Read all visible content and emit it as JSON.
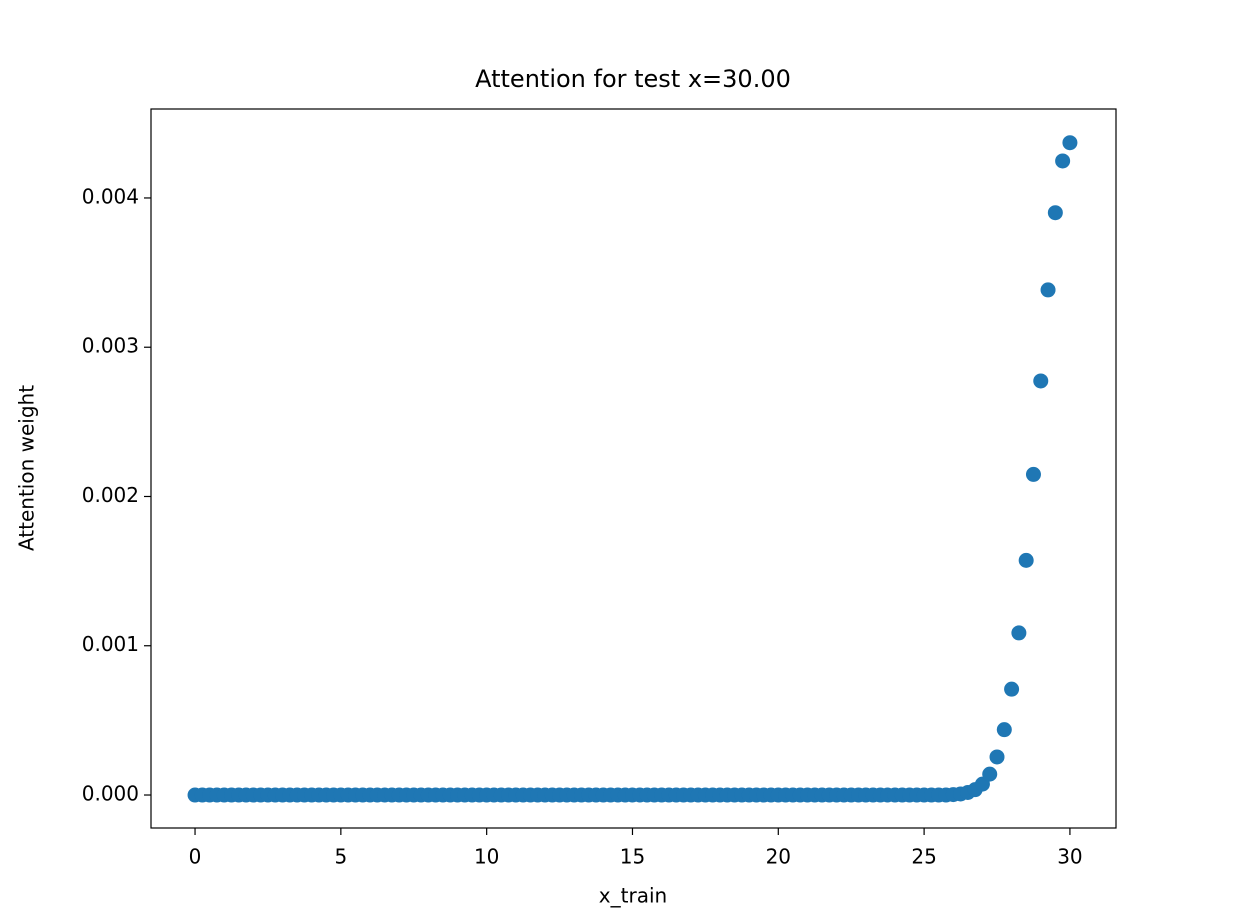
{
  "chart_data": {
    "type": "scatter",
    "title": "Attention for test x=30.00",
    "xlabel": "x_train",
    "ylabel": "Attention weight",
    "color": "#1f77b4",
    "x": [
      0,
      0.25,
      0.5,
      0.75,
      1,
      1.25,
      1.5,
      1.75,
      2,
      2.25,
      2.5,
      2.75,
      3,
      3.25,
      3.5,
      3.75,
      4,
      4.25,
      4.5,
      4.75,
      5,
      5.25,
      5.5,
      5.75,
      6,
      6.25,
      6.5,
      6.75,
      7,
      7.25,
      7.5,
      7.75,
      8,
      8.25,
      8.5,
      8.75,
      9,
      9.25,
      9.5,
      9.75,
      10,
      10.25,
      10.5,
      10.75,
      11,
      11.25,
      11.5,
      11.75,
      12,
      12.25,
      12.5,
      12.75,
      13,
      13.25,
      13.5,
      13.75,
      14,
      14.25,
      14.5,
      14.75,
      15,
      15.25,
      15.5,
      15.75,
      16,
      16.25,
      16.5,
      16.75,
      17,
      17.25,
      17.5,
      17.75,
      18,
      18.25,
      18.5,
      18.75,
      19,
      19.25,
      19.5,
      19.75,
      20,
      20.25,
      20.5,
      20.75,
      21,
      21.25,
      21.5,
      21.75,
      22,
      22.25,
      22.5,
      22.75,
      23,
      23.25,
      23.5,
      23.75,
      24,
      24.25,
      24.5,
      24.75,
      25,
      25.25,
      25.5,
      25.75,
      26,
      26.25,
      26.5,
      26.75,
      27,
      27.25,
      27.5,
      27.75,
      28,
      28.25,
      28.5,
      28.75,
      29,
      29.25,
      29.5,
      29.75,
      30
    ],
    "values": [
      0,
      0,
      0,
      0,
      0,
      0,
      0,
      0,
      0,
      0,
      0,
      0,
      0,
      0,
      0,
      0,
      0,
      0,
      0,
      0,
      0,
      0,
      0,
      0,
      0,
      0,
      0,
      0,
      0,
      0,
      0,
      0,
      0,
      0,
      0,
      0,
      0,
      0,
      0,
      0,
      0,
      0,
      0,
      0,
      0,
      0,
      0,
      0,
      0,
      0,
      0,
      0,
      0,
      0,
      0,
      0,
      0,
      0,
      0,
      0,
      0,
      0,
      0,
      0,
      0,
      0,
      0,
      0,
      0,
      0,
      0,
      0,
      0,
      0,
      0,
      0,
      0,
      0,
      0,
      0,
      0,
      0,
      0,
      0,
      0,
      0,
      0,
      0,
      0,
      0,
      0,
      0,
      0,
      0,
      0,
      0,
      0,
      0,
      0,
      0,
      0,
      0,
      0,
      0,
      3e-06,
      7e-06,
      1.7e-05,
      3.6e-05,
      7.3e-05,
      0.00014,
      0.000255,
      0.000438,
      0.000709,
      0.001086,
      0.001572,
      0.002148,
      0.002774,
      0.003384,
      0.003901,
      0.004248,
      0.00437
    ],
    "xlim": [
      -1.51,
      31.58
    ],
    "xticks": [
      0,
      5,
      10,
      15,
      20,
      25,
      30
    ],
    "ylim": [
      -0.000221,
      0.004596
    ],
    "yticks": [
      {
        "value": 0,
        "label": "0.000"
      },
      {
        "value": 0.001,
        "label": "0.001"
      },
      {
        "value": 0.002,
        "label": "0.002"
      },
      {
        "value": 0.003,
        "label": "0.003"
      },
      {
        "value": 0.004,
        "label": "0.004"
      }
    ]
  }
}
